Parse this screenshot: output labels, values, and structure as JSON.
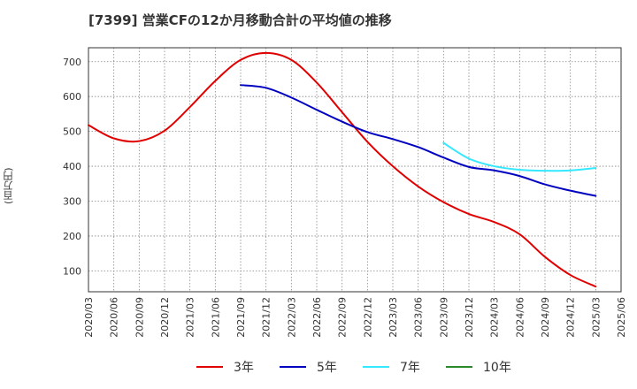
{
  "chart_data": {
    "type": "line",
    "title": "[7399]  営業CFの12か月移動合計の平均値の推移",
    "ylabel": "(百万円)",
    "xlabel": "",
    "ylim": [
      40,
      740
    ],
    "yticks": [
      100,
      200,
      300,
      400,
      500,
      600,
      700
    ],
    "x_ticks": [
      "2020/03",
      "2020/06",
      "2020/09",
      "2020/12",
      "2021/03",
      "2021/06",
      "2021/09",
      "2021/12",
      "2022/03",
      "2022/06",
      "2022/09",
      "2022/12",
      "2023/03",
      "2023/06",
      "2023/09",
      "2023/12",
      "2024/03",
      "2024/06",
      "2024/09",
      "2024/12",
      "2025/03",
      "2025/06"
    ],
    "grid": true,
    "legend_position": "bottom",
    "series": [
      {
        "name": "3年",
        "color": "#e00000",
        "x": [
          "2020/03",
          "2020/06",
          "2020/09",
          "2020/12",
          "2021/03",
          "2021/06",
          "2021/09",
          "2021/12",
          "2022/03",
          "2022/06",
          "2022/09",
          "2022/12",
          "2023/03",
          "2023/06",
          "2023/09",
          "2023/12",
          "2024/03",
          "2024/06",
          "2024/09",
          "2024/12",
          "2025/03"
        ],
        "values": [
          518,
          480,
          472,
          502,
          570,
          645,
          705,
          725,
          705,
          640,
          555,
          470,
          400,
          342,
          297,
          263,
          240,
          205,
          140,
          88,
          55
        ]
      },
      {
        "name": "5年",
        "color": "#0000c0",
        "x": [
          "2021/09",
          "2021/12",
          "2022/03",
          "2022/06",
          "2022/09",
          "2022/12",
          "2023/03",
          "2023/06",
          "2023/09",
          "2023/12",
          "2024/03",
          "2024/06",
          "2024/09",
          "2024/12",
          "2025/03"
        ],
        "values": [
          633,
          625,
          597,
          562,
          528,
          498,
          478,
          455,
          425,
          398,
          388,
          372,
          348,
          330,
          315
        ]
      },
      {
        "name": "7年",
        "color": "#33e8ff",
        "x": [
          "2023/09",
          "2023/12",
          "2024/03",
          "2024/06",
          "2024/09",
          "2024/12",
          "2025/03"
        ],
        "values": [
          467,
          422,
          400,
          390,
          387,
          388,
          395
        ]
      },
      {
        "name": "10年",
        "color": "#2a8a2a",
        "x": [],
        "values": []
      }
    ]
  }
}
